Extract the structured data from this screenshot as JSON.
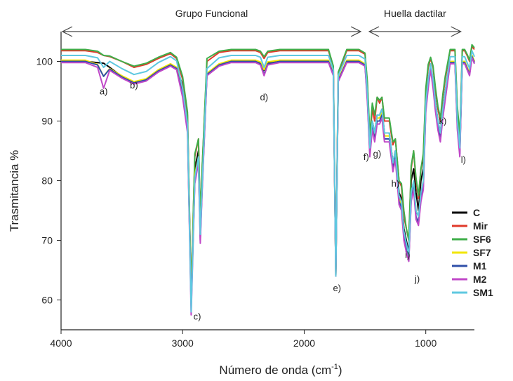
{
  "chart_data": {
    "type": "line",
    "xlabel": "Número de onda (cm",
    "xlabel_sup": "-1",
    "xlabel_close": ")",
    "ylabel": "Trasmitancia %",
    "xlim": [
      4000,
      600
    ],
    "ylim": [
      55,
      105
    ],
    "xticks": [
      4000,
      3000,
      2000,
      1000
    ],
    "yticks": [
      60,
      70,
      80,
      90,
      100
    ],
    "grid": false,
    "legend_position": "bottom-right",
    "regions": [
      {
        "label": "Grupo Funcional",
        "from": 4000,
        "to": 1500
      },
      {
        "label": "Huella dactilar",
        "from": 1500,
        "to": 700
      }
    ],
    "annotations": [
      {
        "label": "a)",
        "x": 3650,
        "y": 94.5
      },
      {
        "label": "b)",
        "x": 3400,
        "y": 95.5
      },
      {
        "label": "c)",
        "x": 2880,
        "y": 56.7
      },
      {
        "label": "d)",
        "x": 2330,
        "y": 93.5
      },
      {
        "label": "e)",
        "x": 1730,
        "y": 61.5
      },
      {
        "label": "f)",
        "x": 1490,
        "y": 83.5
      },
      {
        "label": "g)",
        "x": 1400,
        "y": 84
      },
      {
        "label": "h)",
        "x": 1250,
        "y": 79
      },
      {
        "label": "i)",
        "x": 1150,
        "y": 67
      },
      {
        "label": "j)",
        "x": 1070,
        "y": 63
      },
      {
        "label": "k)",
        "x": 860,
        "y": 89.5
      },
      {
        "label": "l)",
        "x": 690,
        "y": 83
      }
    ],
    "series": [
      {
        "name": "C",
        "color": "#000000",
        "x": [
          4000,
          3800,
          3700,
          3650,
          3600,
          3500,
          3400,
          3300,
          3200,
          3100,
          3050,
          3000,
          2960,
          2930,
          2900,
          2870,
          2855,
          2840,
          2800,
          2700,
          2600,
          2500,
          2400,
          2360,
          2330,
          2300,
          2200,
          2000,
          1800,
          1760,
          1740,
          1720,
          1650,
          1600,
          1550,
          1500,
          1480,
          1460,
          1440,
          1420,
          1400,
          1380,
          1360,
          1340,
          1300,
          1270,
          1250,
          1220,
          1200,
          1180,
          1160,
          1140,
          1120,
          1100,
          1080,
          1060,
          1040,
          1020,
          1000,
          980,
          960,
          940,
          920,
          900,
          880,
          860,
          840,
          800,
          760,
          740,
          720,
          700,
          680,
          660,
          640,
          620,
          600
        ],
        "y": [
          100,
          100,
          99.8,
          99.7,
          99,
          97.5,
          96.5,
          97,
          98.5,
          99.5,
          99,
          96,
          90,
          60,
          82,
          85,
          72,
          80,
          98,
          99.5,
          100,
          100,
          100,
          99.8,
          98.5,
          99.8,
          100,
          100,
          100,
          98,
          64,
          97,
          100,
          100,
          100,
          99.5,
          94,
          85,
          90,
          88,
          91,
          91,
          92,
          88,
          88,
          83,
          85,
          78,
          77,
          72,
          70,
          68,
          80,
          82,
          78,
          75,
          80,
          82,
          93,
          97,
          99,
          97,
          93,
          90,
          88,
          92,
          95,
          100,
          100,
          90,
          85,
          100,
          100,
          99,
          98,
          101,
          100
        ]
      },
      {
        "name": "Mir",
        "color": "#e03a2a",
        "x": [
          4000,
          3800,
          3700,
          3650,
          3600,
          3500,
          3400,
          3300,
          3200,
          3100,
          3050,
          3000,
          2960,
          2930,
          2900,
          2870,
          2855,
          2840,
          2800,
          2700,
          2600,
          2500,
          2400,
          2360,
          2330,
          2300,
          2200,
          2000,
          1800,
          1760,
          1740,
          1720,
          1650,
          1600,
          1550,
          1500,
          1480,
          1460,
          1440,
          1420,
          1400,
          1380,
          1360,
          1340,
          1300,
          1270,
          1250,
          1220,
          1200,
          1180,
          1160,
          1140,
          1120,
          1100,
          1080,
          1060,
          1040,
          1020,
          1000,
          980,
          960,
          940,
          920,
          900,
          880,
          860,
          840,
          800,
          760,
          740,
          720,
          700,
          680,
          660,
          640,
          620,
          600
        ],
        "y": [
          101.8,
          101.8,
          101.5,
          101,
          100.8,
          100,
          99,
          99.5,
          100.5,
          101.3,
          100.5,
          97,
          91,
          61,
          84,
          87,
          74,
          82,
          100,
          101.5,
          101.8,
          101.8,
          101.8,
          101.5,
          100.5,
          101.5,
          101.8,
          101.8,
          101.8,
          99,
          65,
          98,
          101.8,
          101.8,
          101.8,
          101.2,
          96,
          87,
          92,
          90,
          94,
          93,
          94,
          90,
          90,
          86,
          87,
          80,
          79,
          74,
          72,
          70,
          82,
          85,
          80,
          77,
          82,
          84,
          95,
          99,
          100.5,
          99,
          95,
          92,
          90,
          94,
          97,
          101.8,
          101.8,
          92,
          87,
          101.8,
          101.8,
          101,
          100,
          102.5,
          102
        ]
      },
      {
        "name": "SF6",
        "color": "#3fae49",
        "x": [
          4000,
          3800,
          3700,
          3650,
          3600,
          3500,
          3400,
          3300,
          3200,
          3100,
          3050,
          3000,
          2960,
          2930,
          2900,
          2870,
          2855,
          2840,
          2800,
          2700,
          2600,
          2500,
          2400,
          2360,
          2330,
          2300,
          2200,
          2000,
          1800,
          1760,
          1740,
          1720,
          1650,
          1600,
          1550,
          1500,
          1480,
          1460,
          1440,
          1420,
          1400,
          1380,
          1360,
          1340,
          1300,
          1270,
          1250,
          1220,
          1200,
          1180,
          1160,
          1140,
          1120,
          1100,
          1080,
          1060,
          1040,
          1020,
          1000,
          980,
          960,
          940,
          920,
          900,
          880,
          860,
          840,
          800,
          760,
          740,
          720,
          700,
          680,
          660,
          640,
          620,
          600
        ],
        "y": [
          102,
          102,
          101.7,
          101,
          100.9,
          100,
          99.2,
          99.7,
          100.7,
          101.5,
          100.7,
          97.5,
          91.5,
          61,
          84.5,
          87,
          74,
          82,
          100.5,
          101.7,
          102,
          102,
          102,
          101.7,
          100.8,
          101.7,
          102,
          102,
          102,
          99.2,
          65,
          98.2,
          102,
          102,
          102,
          101.4,
          96.5,
          87.5,
          93,
          91,
          94,
          93.5,
          94,
          90.5,
          90.5,
          86.5,
          87,
          80,
          79.5,
          75,
          72,
          70,
          82.5,
          85,
          80.5,
          77.5,
          82,
          84.5,
          95.5,
          99.5,
          100.7,
          99.2,
          95.5,
          92.5,
          90.5,
          94.5,
          97.5,
          102,
          102,
          92.5,
          87.5,
          102,
          102,
          101.2,
          100.2,
          102.8,
          102.3
        ]
      },
      {
        "name": "SF7",
        "color": "#f2e600",
        "x": [
          4000,
          3800,
          3700,
          3650,
          3600,
          3500,
          3400,
          3300,
          3200,
          3100,
          3050,
          3000,
          2960,
          2930,
          2900,
          2870,
          2855,
          2840,
          2800,
          2700,
          2600,
          2500,
          2400,
          2360,
          2330,
          2300,
          2200,
          2000,
          1800,
          1760,
          1740,
          1720,
          1650,
          1600,
          1550,
          1500,
          1480,
          1460,
          1440,
          1420,
          1400,
          1380,
          1360,
          1340,
          1300,
          1270,
          1250,
          1220,
          1200,
          1180,
          1160,
          1140,
          1120,
          1100,
          1080,
          1060,
          1040,
          1020,
          1000,
          980,
          960,
          940,
          920,
          900,
          880,
          860,
          840,
          800,
          760,
          740,
          720,
          700,
          680,
          660,
          640,
          620,
          600
        ],
        "y": [
          100.2,
          100.2,
          99.5,
          97.5,
          98.8,
          97.6,
          96.6,
          97.1,
          98.6,
          99.6,
          99,
          95,
          89,
          60,
          81,
          84,
          71,
          79,
          98,
          99.6,
          100.2,
          100.2,
          100.2,
          99.9,
          98.6,
          99.9,
          100.2,
          100.2,
          100.2,
          98,
          64,
          97,
          100.2,
          100.2,
          100.2,
          99.6,
          94,
          85,
          89.5,
          87.5,
          90.5,
          90.5,
          91.5,
          87.5,
          87.5,
          82.5,
          84.5,
          77,
          76,
          71,
          69,
          67,
          78,
          80,
          75,
          74,
          78,
          80,
          92.5,
          96.5,
          99,
          96.5,
          92.5,
          89.5,
          87.5,
          91.5,
          94.5,
          100,
          100,
          89.5,
          85,
          100,
          100,
          99,
          98,
          101,
          100
        ]
      },
      {
        "name": "M1",
        "color": "#2f4fa8",
        "x": [
          4000,
          3800,
          3700,
          3650,
          3600,
          3500,
          3400,
          3300,
          3200,
          3100,
          3050,
          3000,
          2960,
          2930,
          2900,
          2870,
          2855,
          2840,
          2800,
          2700,
          2600,
          2500,
          2400,
          2360,
          2330,
          2300,
          2200,
          2000,
          1800,
          1760,
          1740,
          1720,
          1650,
          1600,
          1550,
          1500,
          1480,
          1460,
          1440,
          1420,
          1400,
          1380,
          1360,
          1340,
          1300,
          1270,
          1250,
          1220,
          1200,
          1180,
          1160,
          1140,
          1120,
          1100,
          1080,
          1060,
          1040,
          1020,
          1000,
          980,
          960,
          940,
          920,
          900,
          880,
          860,
          840,
          800,
          760,
          740,
          720,
          700,
          680,
          660,
          640,
          620,
          600
        ],
        "y": [
          100,
          100,
          99.4,
          97.5,
          98.7,
          97.4,
          96.4,
          96.9,
          98.4,
          99.4,
          98.8,
          94.5,
          88.5,
          59,
          80,
          83.5,
          70,
          78.5,
          97.8,
          99.4,
          100,
          100,
          100,
          99.6,
          97.8,
          99.6,
          100,
          100,
          100,
          97.8,
          64,
          96.8,
          100,
          100,
          100,
          99.4,
          93.5,
          84.5,
          89,
          87,
          90,
          90,
          91,
          87,
          87,
          82,
          84,
          76.5,
          75.5,
          70.5,
          68.5,
          66.5,
          77,
          79,
          74,
          73,
          77,
          79,
          92,
          96,
          98.8,
          96,
          92,
          89,
          87,
          91,
          94,
          99.8,
          99.8,
          89,
          84.5,
          99.8,
          99.8,
          98.8,
          97.8,
          100.8,
          99.8
        ]
      },
      {
        "name": "M2",
        "color": "#c048c8",
        "x": [
          4000,
          3800,
          3700,
          3650,
          3600,
          3500,
          3400,
          3300,
          3200,
          3100,
          3050,
          3000,
          2960,
          2930,
          2900,
          2870,
          2855,
          2840,
          2800,
          2700,
          2600,
          2500,
          2400,
          2360,
          2330,
          2300,
          2200,
          2000,
          1800,
          1760,
          1740,
          1720,
          1650,
          1600,
          1550,
          1500,
          1480,
          1460,
          1440,
          1420,
          1400,
          1380,
          1360,
          1340,
          1300,
          1270,
          1250,
          1220,
          1200,
          1180,
          1160,
          1140,
          1120,
          1100,
          1080,
          1060,
          1040,
          1020,
          1000,
          980,
          960,
          940,
          920,
          900,
          880,
          860,
          840,
          800,
          760,
          740,
          720,
          700,
          680,
          660,
          640,
          620,
          600
        ],
        "y": [
          99.8,
          99.8,
          99,
          95.5,
          98.5,
          97.2,
          96.2,
          96.7,
          98.2,
          99.2,
          98.6,
          94,
          88,
          57.5,
          79.5,
          83,
          69.5,
          78,
          97.6,
          99.2,
          99.8,
          99.8,
          99.8,
          99.4,
          97.6,
          99.4,
          99.8,
          99.8,
          99.8,
          97.6,
          64,
          96.6,
          99.8,
          99.8,
          99.8,
          99.2,
          93,
          84,
          88.5,
          86.5,
          89.5,
          89.5,
          90.5,
          86.5,
          86.5,
          81.5,
          83.5,
          76,
          75,
          70,
          68,
          66.5,
          76.5,
          78.5,
          73.5,
          72.5,
          76.5,
          78.5,
          91.5,
          95.5,
          98.6,
          95.5,
          91.5,
          88.5,
          86.5,
          90.5,
          93.5,
          99.6,
          99.6,
          88.5,
          84,
          99.6,
          99.6,
          98.6,
          97.6,
          100.6,
          99.6
        ]
      },
      {
        "name": "SM1",
        "color": "#5fc8e0",
        "x": [
          4000,
          3800,
          3700,
          3650,
          3600,
          3500,
          3400,
          3300,
          3200,
          3100,
          3050,
          3000,
          2960,
          2930,
          2900,
          2870,
          2855,
          2840,
          2800,
          2700,
          2600,
          2500,
          2400,
          2360,
          2330,
          2300,
          2200,
          2000,
          1800,
          1760,
          1740,
          1720,
          1650,
          1600,
          1550,
          1500,
          1480,
          1460,
          1440,
          1420,
          1400,
          1380,
          1360,
          1340,
          1300,
          1270,
          1250,
          1220,
          1200,
          1180,
          1160,
          1140,
          1120,
          1100,
          1080,
          1060,
          1040,
          1020,
          1000,
          980,
          960,
          940,
          920,
          900,
          880,
          860,
          840,
          800,
          760,
          740,
          720,
          700,
          680,
          660,
          640,
          620,
          600
        ],
        "y": [
          101,
          101,
          100.6,
          99,
          100,
          98.8,
          97.8,
          98.3,
          99.8,
          100.8,
          100.1,
          95.5,
          89.5,
          58,
          80.5,
          84,
          71,
          79,
          98.8,
          100.6,
          101,
          101,
          101,
          100.7,
          99,
          100.7,
          101,
          101,
          101,
          98.6,
          64,
          97.6,
          101,
          101,
          101,
          100.4,
          94.5,
          85.5,
          90,
          88,
          91,
          91,
          92,
          88,
          88,
          83,
          85,
          77.5,
          76.5,
          71.5,
          69.5,
          67.5,
          78,
          80,
          75,
          74,
          78,
          80,
          93,
          97,
          99.6,
          97,
          93,
          90,
          88,
          92,
          95,
          100.8,
          100.8,
          90,
          85.5,
          100.8,
          100.8,
          99.8,
          98.8,
          101.8,
          100.8
        ]
      }
    ]
  }
}
